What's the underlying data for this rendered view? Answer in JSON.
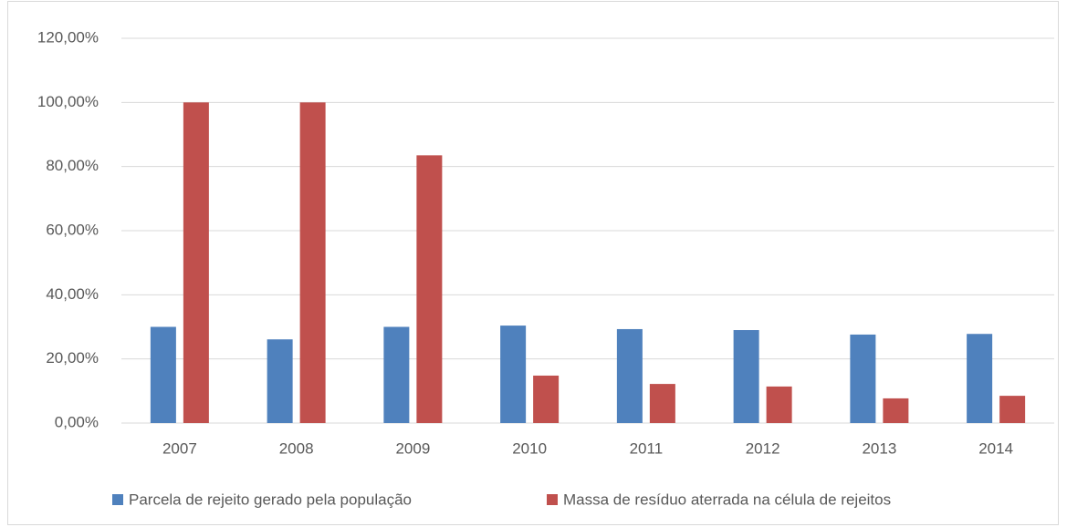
{
  "chart_data": {
    "type": "bar",
    "categories": [
      "2007",
      "2008",
      "2009",
      "2010",
      "2011",
      "2012",
      "2013",
      "2014"
    ],
    "series": [
      {
        "name": "Parcela de rejeito gerado pela população",
        "color": "#4f81bd",
        "values": [
          30,
          26.1,
          30,
          30.4,
          29.3,
          29,
          27.6,
          27.8
        ]
      },
      {
        "name": "Massa de resíduo aterrada na célula de rejeitos",
        "color": "#c0504d",
        "values": [
          100,
          100,
          83.5,
          14.8,
          12.2,
          11.4,
          7.7,
          8.5
        ]
      }
    ],
    "ylim": [
      0,
      120
    ],
    "yticks": [
      {
        "value": 0,
        "label": "0,00%"
      },
      {
        "value": 20,
        "label": "20,00%"
      },
      {
        "value": 40,
        "label": "40,00%"
      },
      {
        "value": 60,
        "label": "60,00%"
      },
      {
        "value": 80,
        "label": "80,00%"
      },
      {
        "value": 100,
        "label": "100,00%"
      },
      {
        "value": 120,
        "label": "120,00%"
      }
    ],
    "grid": true,
    "legend": "bottom"
  }
}
